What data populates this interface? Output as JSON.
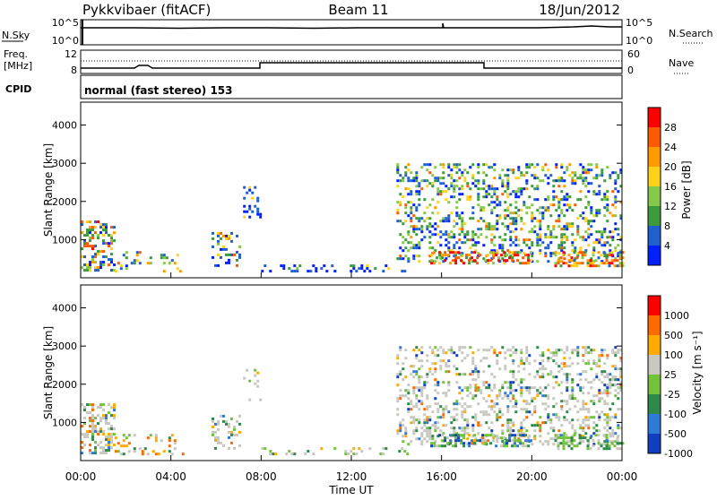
{
  "header": {
    "station": "Pykkvibaer (fitACF)",
    "beam": "Beam 11",
    "date": "18/Jun/2012"
  },
  "sky_panel": {
    "left_label": "N.Sky",
    "right_label": "N.Search",
    "left_ticks": [
      "10^5",
      "10^0"
    ],
    "right_ticks": [
      "10^5",
      "10^0"
    ]
  },
  "freq_panel": {
    "left_label_line1": "Freq.",
    "left_label_line2": "[MHz]",
    "right_label": "Nave",
    "left_ticks": [
      "12",
      "8"
    ],
    "right_ticks": [
      "60",
      "0"
    ]
  },
  "cpid": {
    "label": "CPID",
    "mode": "normal (fast stereo) 153"
  },
  "power_panel": {
    "ylabel": "Slant Range [km]",
    "yticks": [
      4000,
      3000,
      2000,
      1000
    ],
    "colorbar_label": "Power [dB]",
    "colorbar_ticks": [
      "28",
      "24",
      "20",
      "16",
      "12",
      "8",
      "4"
    ],
    "colors": [
      "#0020ff",
      "#1f5fd0",
      "#3c9a3c",
      "#86c84a",
      "#ffd21a",
      "#ff9a00",
      "#ff5a00",
      "#ff0000"
    ]
  },
  "velocity_panel": {
    "ylabel": "Slant Range [km]",
    "yticks": [
      4000,
      3000,
      2000,
      1000
    ],
    "colorbar_label": "Velocity [m s⁻¹]",
    "colorbar_ticks": [
      "1000",
      "500",
      "100",
      "25",
      "-25",
      "-100",
      "-500",
      "-1000"
    ],
    "colors": [
      "#1040c0",
      "#2f7ad8",
      "#2e8a4a",
      "#72c23a",
      "#c8c8c0",
      "#ffaa00",
      "#ff6a00",
      "#ff0000"
    ]
  },
  "x_axis": {
    "ticks": [
      "00:00",
      "04:00",
      "08:00",
      "12:00",
      "16:00",
      "20:00",
      "00:00"
    ],
    "label": "Time UT"
  }
}
